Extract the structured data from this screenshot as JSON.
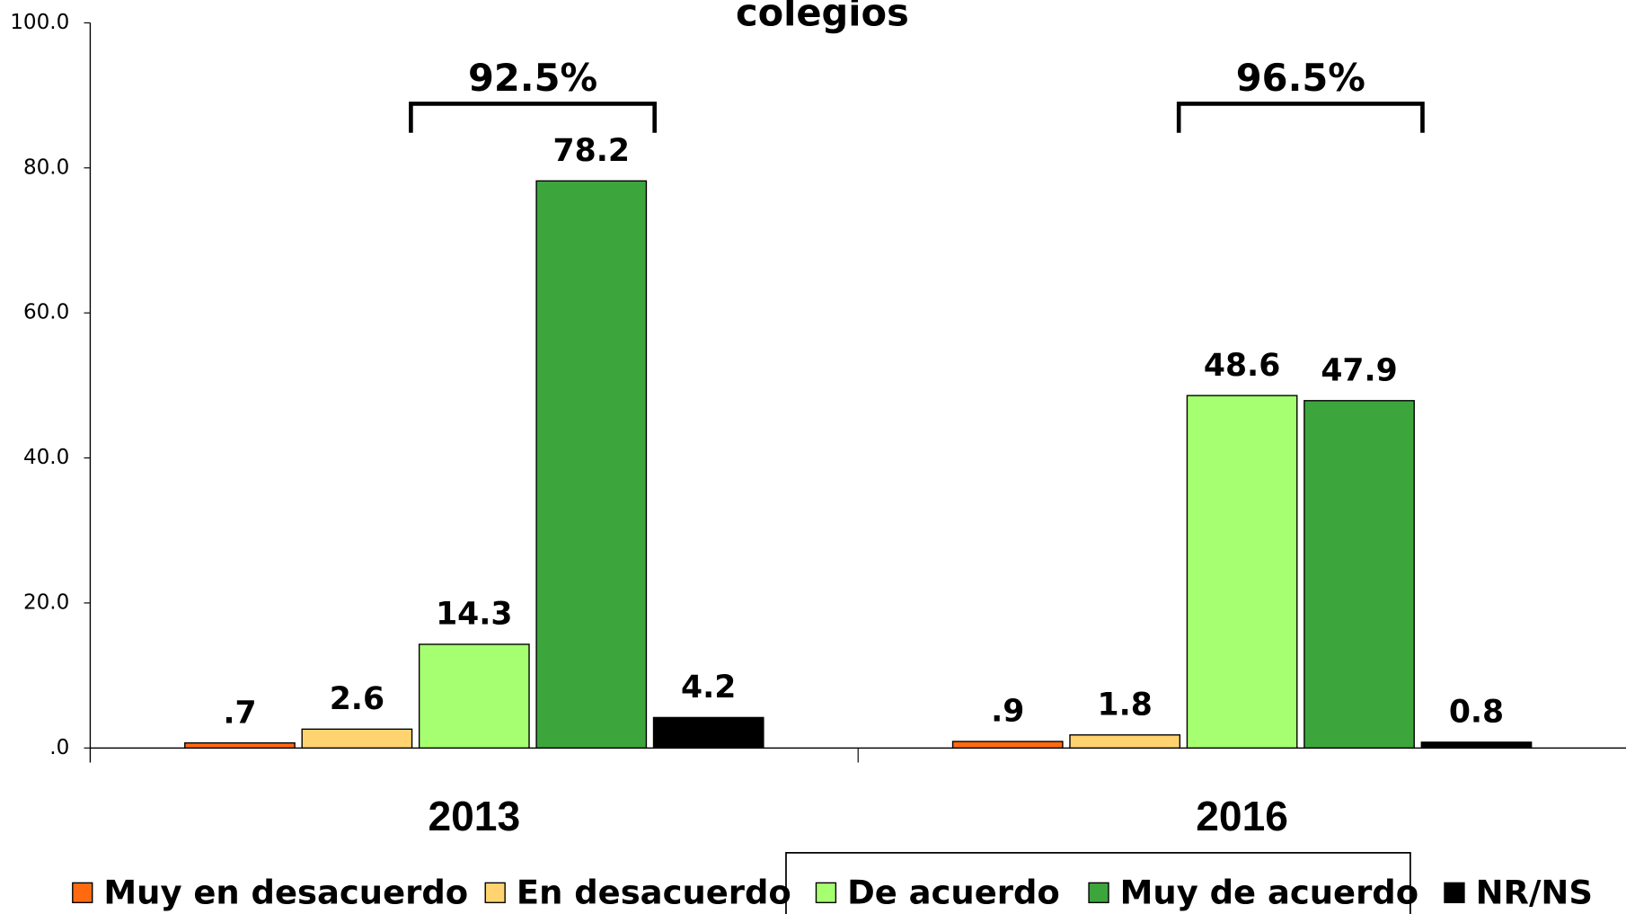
{
  "chart_data": {
    "type": "bar",
    "title": "colegios",
    "categories": [
      "2013",
      "2016"
    ],
    "series": [
      {
        "name": "Muy en desacuerdo",
        "color": "#ff6a10",
        "values": [
          0.7,
          0.9
        ],
        "value_labels": [
          ".7",
          ".9"
        ]
      },
      {
        "name": "En desacuerdo",
        "color": "#ffd470",
        "values": [
          2.6,
          1.8
        ],
        "value_labels": [
          "2.6",
          "1.8"
        ]
      },
      {
        "name": "De acuerdo",
        "color": "#a6ff70",
        "values": [
          14.3,
          48.6
        ],
        "value_labels": [
          "14.3",
          "48.6"
        ]
      },
      {
        "name": "Muy de acuerdo",
        "color": "#3ca63c",
        "values": [
          78.2,
          47.9
        ],
        "value_labels": [
          "78.2",
          "47.9"
        ]
      },
      {
        "name": "NR/NS",
        "color": "#000000",
        "values": [
          4.2,
          0.8
        ],
        "value_labels": [
          "4.2",
          "0.8"
        ]
      }
    ],
    "annotations": [
      "92.5%",
      "96.5%"
    ],
    "ylim": [
      0,
      100
    ],
    "yticks": [
      {
        "value": 0,
        "label": ".0"
      },
      {
        "value": 20,
        "label": "20.0"
      },
      {
        "value": 40,
        "label": "40.0"
      },
      {
        "value": 60,
        "label": "60.0"
      },
      {
        "value": 80,
        "label": "80.0"
      },
      {
        "value": 100,
        "label": "100.0"
      }
    ],
    "grid": false,
    "legend": "bottom"
  }
}
